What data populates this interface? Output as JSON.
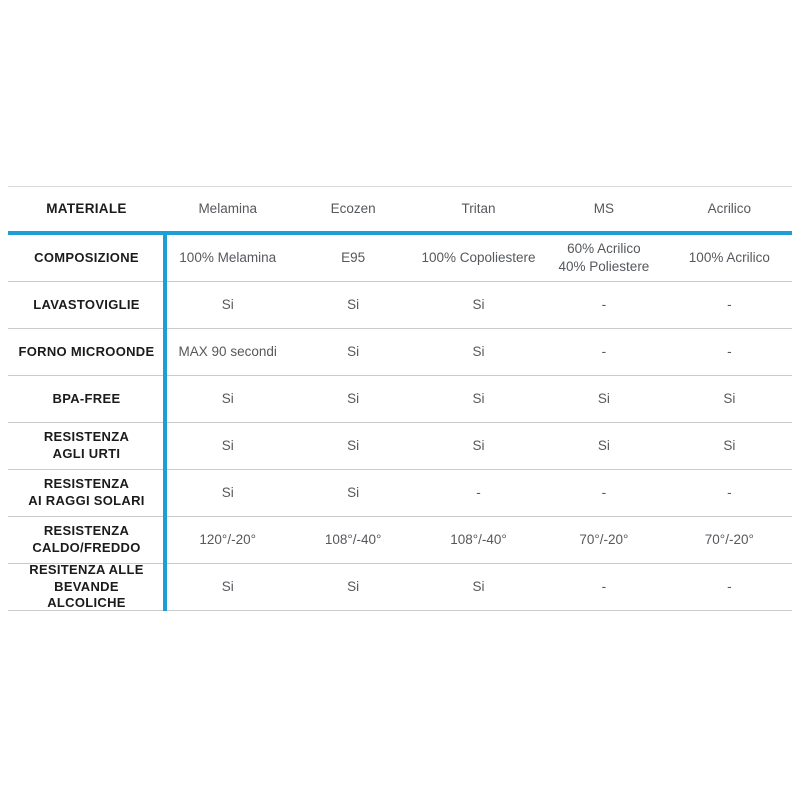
{
  "colors": {
    "accent_blue": "#1e9ed6",
    "row_line_gray": "#c9ccce",
    "top_line_gray": "#d8dadc",
    "label_text": "#1b1b1d",
    "value_text": "#55585c",
    "background": "#ffffff"
  },
  "chart_data": {
    "type": "table",
    "title": "",
    "columns": [
      "MATERIALE",
      "Melamina",
      "Ecozen",
      "Tritan",
      "MS",
      "Acrilico"
    ],
    "rows": [
      [
        "COMPOSIZIONE",
        "100% Melamina",
        "E95",
        "100% Copoliestere",
        "60% Acrilico\n40% Poliestere",
        "100% Acrilico"
      ],
      [
        "LAVASTOVIGLIE",
        "Si",
        "Si",
        "Si",
        "-",
        "-"
      ],
      [
        "FORNO MICROONDE",
        "MAX 90 secondi",
        "Si",
        "Si",
        "-",
        "-"
      ],
      [
        "BPA-FREE",
        "Si",
        "Si",
        "Si",
        "Si",
        "Si"
      ],
      [
        "RESISTENZA\nAGLI URTI",
        "Si",
        "Si",
        "Si",
        "Si",
        "Si"
      ],
      [
        "RESISTENZA\nAI RAGGI SOLARI",
        "Si",
        "Si",
        "-",
        "-",
        "-"
      ],
      [
        "RESISTENZA\nCALDO/FREDDO",
        "120°/-20°",
        "108°/-40°",
        "108°/-40°",
        "70°/-20°",
        "70°/-20°"
      ],
      [
        "RESITENZA ALLE\nBEVANDE ALCOLICHE",
        "Si",
        "Si",
        "Si",
        "-",
        "-"
      ]
    ],
    "layout": {
      "header_divider": "thick blue line below header row",
      "first_column_divider": "thick blue vertical line after first column",
      "grid": "thin gray horizontal row lines",
      "canvas": "white, table vertically centered"
    }
  }
}
